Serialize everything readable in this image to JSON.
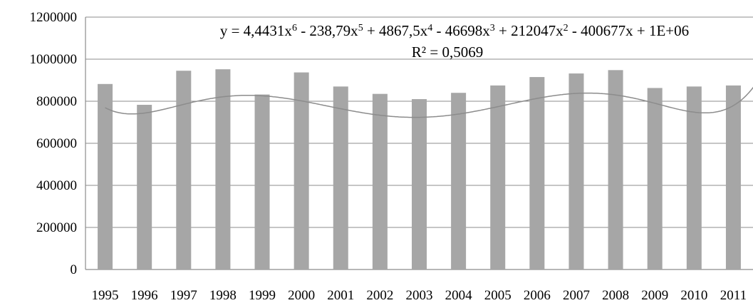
{
  "chart_data": {
    "type": "bar",
    "categories": [
      "1995",
      "1996",
      "1997",
      "1998",
      "1999",
      "2000",
      "2001",
      "2002",
      "2003",
      "2004",
      "2005",
      "2006",
      "2007",
      "2008",
      "2009",
      "2010",
      "2011"
    ],
    "values": [
      882000,
      783000,
      945000,
      952000,
      832000,
      937000,
      870000,
      835000,
      810000,
      840000,
      875000,
      915000,
      932000,
      948000,
      863000,
      870000,
      875000
    ],
    "ylim": [
      0,
      1200000
    ],
    "yticks": [
      "0",
      "200000",
      "400000",
      "600000",
      "800000",
      "1000000",
      "1200000"
    ],
    "grid": true,
    "legend": "none",
    "bar_color": "#a6a6a6",
    "trendline": {
      "type": "polynomial",
      "order": 6,
      "equation_prefix": "y = 4,4431x",
      "equation_terms": [
        {
          "text": "y = 4,4431x",
          "sup": "6"
        },
        {
          "text": " - 238,79x",
          "sup": "5"
        },
        {
          "text": " + 4867,5x",
          "sup": "4"
        },
        {
          "text": " - 46698x",
          "sup": "3"
        },
        {
          "text": " + 212047x",
          "sup": "2"
        },
        {
          "text": " - 400677x + 1E+06",
          "sup": ""
        }
      ],
      "r2_label": "R² = 0,5069",
      "r2": 0.5069,
      "coefficients": [
        4.4431,
        -238.79,
        4867.5,
        -46698,
        212047,
        -400677,
        1000000
      ],
      "color": "#8c8c8c"
    }
  }
}
